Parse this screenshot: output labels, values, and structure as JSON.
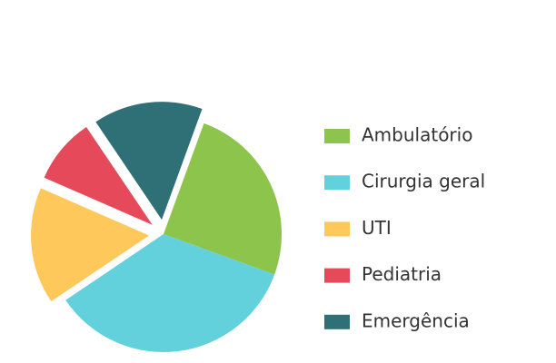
{
  "chart_data": {
    "type": "pie",
    "categories": [
      "Ambulatório",
      "Cirurgia geral",
      "UTI",
      "Pediatria",
      "Emergência"
    ],
    "values": [
      25,
      35,
      16,
      9,
      15
    ],
    "colors": [
      "#8dc44b",
      "#63d1dc",
      "#fec85b",
      "#e6495a",
      "#2f6f76"
    ],
    "exploded": [
      false,
      false,
      true,
      true,
      true
    ],
    "legend": "right"
  }
}
